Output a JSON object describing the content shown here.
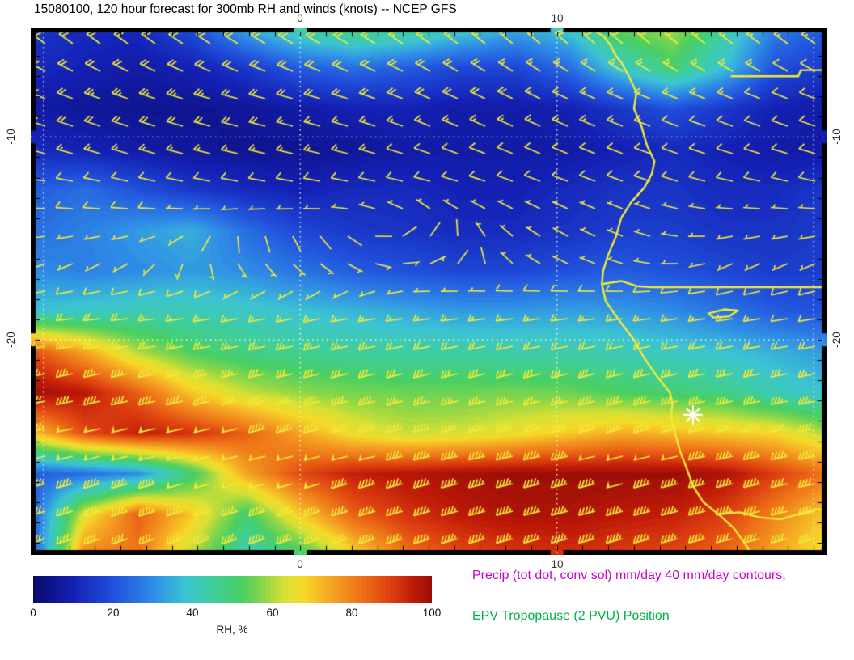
{
  "title": "15080100, 120 hour forecast for 300mb RH and winds (knots) -- NCEP GFS",
  "axes": {
    "lon_range": [
      -10.5,
      20.5
    ],
    "lat_range": [
      -30.6,
      -4.6
    ],
    "lon_ticks": [
      {
        "value": 0,
        "label": "0"
      },
      {
        "value": 10,
        "label": "10"
      }
    ],
    "lat_ticks": [
      {
        "value": -10,
        "label": "-10"
      },
      {
        "value": -20,
        "label": "-20"
      }
    ],
    "lon_gridlines": [
      -10,
      0,
      10,
      20
    ],
    "lat_gridlines": [
      -10,
      -20
    ]
  },
  "colorbar": {
    "label": "RH, %",
    "tick_labels": [
      "0",
      "20",
      "40",
      "60",
      "80",
      "100"
    ],
    "min": 0,
    "max": 100
  },
  "annotations": {
    "precip_line": "Precip (tot dot, conv sol) mm/day 40 mm/day contours,",
    "precip_color": "#cc00cc",
    "epv_line": "EPV Tropopause (2 PVU) Position",
    "epv_color": "#00b244"
  },
  "chart_data": {
    "type": "heatmap",
    "title": "15080100, 120 hour forecast for 300mb RH and winds (knots) -- NCEP GFS",
    "field": "300mb relative humidity (%)",
    "overlay": "wind barbs (knots)",
    "model": "NCEP GFS",
    "init_time": "15080100",
    "forecast_hour": 120,
    "lons": [
      -10.5,
      -8.4,
      -6.3,
      -4.2,
      -2.1,
      0,
      2.1,
      4.2,
      6.3,
      8.4,
      10.5,
      12.5,
      14.5,
      16.5,
      18.5,
      20.5
    ],
    "lats": [
      -4.6,
      -6.6,
      -8.6,
      -10.6,
      -12.6,
      -14.6,
      -16.6,
      -18.6,
      -20.6,
      -22.6,
      -24.6,
      -26.6,
      -28.6,
      -30.6
    ],
    "rh": [
      [
        15,
        12,
        12,
        20,
        35,
        45,
        50,
        48,
        42,
        35,
        40,
        55,
        60,
        45,
        28,
        22
      ],
      [
        12,
        10,
        8,
        10,
        15,
        22,
        25,
        22,
        18,
        18,
        25,
        40,
        50,
        38,
        20,
        15
      ],
      [
        8,
        6,
        5,
        5,
        6,
        8,
        10,
        10,
        8,
        8,
        10,
        15,
        20,
        15,
        10,
        8
      ],
      [
        12,
        10,
        8,
        6,
        5,
        5,
        6,
        8,
        8,
        8,
        8,
        10,
        12,
        10,
        8,
        8
      ],
      [
        22,
        25,
        20,
        15,
        12,
        10,
        12,
        12,
        10,
        10,
        12,
        14,
        14,
        12,
        12,
        15
      ],
      [
        25,
        28,
        32,
        35,
        25,
        18,
        15,
        14,
        12,
        12,
        14,
        16,
        16,
        14,
        14,
        16
      ],
      [
        30,
        28,
        30,
        32,
        30,
        26,
        22,
        20,
        18,
        18,
        20,
        22,
        20,
        18,
        16,
        16
      ],
      [
        38,
        40,
        42,
        42,
        40,
        38,
        36,
        34,
        32,
        32,
        33,
        32,
        30,
        26,
        22,
        20
      ],
      [
        88,
        75,
        60,
        52,
        48,
        46,
        45,
        44,
        44,
        43,
        43,
        42,
        40,
        38,
        35,
        32
      ],
      [
        100,
        96,
        85,
        70,
        62,
        58,
        56,
        55,
        55,
        56,
        55,
        52,
        50,
        48,
        42,
        38
      ],
      [
        70,
        88,
        95,
        92,
        85,
        75,
        66,
        62,
        63,
        66,
        70,
        74,
        72,
        70,
        68,
        60
      ],
      [
        22,
        25,
        30,
        50,
        75,
        88,
        95,
        97,
        99,
        100,
        100,
        100,
        100,
        98,
        90,
        82
      ],
      [
        20,
        65,
        85,
        70,
        50,
        70,
        85,
        92,
        96,
        98,
        98,
        96,
        95,
        90,
        80,
        70
      ],
      [
        18,
        80,
        82,
        60,
        42,
        50,
        68,
        82,
        88,
        91,
        92,
        90,
        88,
        84,
        75,
        65
      ]
    ],
    "wind": {
      "units": "knots",
      "lons": [
        -10.5,
        -6.6,
        -2.7,
        1.2,
        5.1,
        9,
        12.9,
        16.8,
        20.5
      ],
      "lats": [
        -4.6,
        -8,
        -12,
        -16,
        -19,
        -22,
        -25,
        -30.6
      ],
      "u": [
        [
          14,
          16,
          15,
          14,
          12,
          12,
          14,
          12,
          10
        ],
        [
          20,
          22,
          22,
          20,
          18,
          16,
          15,
          12,
          10
        ],
        [
          12,
          12,
          10,
          10,
          8,
          8,
          8,
          8,
          8
        ],
        [
          5,
          4,
          -4,
          -6,
          -5,
          3,
          5,
          4,
          4
        ],
        [
          18,
          18,
          16,
          15,
          15,
          14,
          14,
          13,
          12
        ],
        [
          38,
          36,
          34,
          32,
          30,
          30,
          32,
          30,
          28
        ],
        [
          48,
          50,
          50,
          48,
          45,
          45,
          48,
          46,
          42
        ],
        [
          35,
          38,
          40,
          42,
          44,
          45,
          44,
          40,
          36
        ]
      ],
      "v": [
        [
          -12,
          -14,
          -12,
          -10,
          -10,
          -12,
          -14,
          -10,
          -8
        ],
        [
          -8,
          -8,
          -6,
          -6,
          -8,
          -8,
          -6,
          -5,
          -4
        ],
        [
          -2,
          -3,
          -2,
          -2,
          -2,
          -3,
          -3,
          -2,
          -2
        ],
        [
          2,
          3,
          4,
          3,
          -2,
          -3,
          -2,
          2,
          2
        ],
        [
          2,
          2,
          3,
          3,
          2,
          2,
          2,
          2,
          2
        ],
        [
          8,
          8,
          8,
          8,
          8,
          8,
          8,
          6,
          6
        ],
        [
          10,
          12,
          12,
          12,
          10,
          10,
          12,
          10,
          8
        ],
        [
          12,
          14,
          14,
          14,
          14,
          12,
          12,
          10,
          10
        ]
      ]
    },
    "colormap": [
      {
        "v": 0,
        "c": "#0a0a6e"
      },
      {
        "v": 10,
        "c": "#1420b4"
      },
      {
        "v": 20,
        "c": "#2050dc"
      },
      {
        "v": 30,
        "c": "#2f8ce6"
      },
      {
        "v": 38,
        "c": "#3cc3d2"
      },
      {
        "v": 45,
        "c": "#3fce9e"
      },
      {
        "v": 52,
        "c": "#49cf63"
      },
      {
        "v": 58,
        "c": "#8ed647"
      },
      {
        "v": 63,
        "c": "#d8e034"
      },
      {
        "v": 68,
        "c": "#f5d928"
      },
      {
        "v": 75,
        "c": "#f5a424"
      },
      {
        "v": 82,
        "c": "#ee7518"
      },
      {
        "v": 90,
        "c": "#dc3d10"
      },
      {
        "v": 96,
        "c": "#bc1808"
      },
      {
        "v": 100,
        "c": "#9b0f06"
      }
    ],
    "coastline_color": "#f2e93a",
    "barb_color": "#f2e93a",
    "gridline_color": "#fffde0",
    "marker": {
      "lon": 15.3,
      "lat": -23.7,
      "symbol": "asterisk",
      "color": "#ffffff"
    },
    "coastline": [
      [
        11.2,
        -4.6
      ],
      [
        11.8,
        -5.0
      ],
      [
        12.1,
        -5.5
      ],
      [
        12.3,
        -6.0
      ],
      [
        12.5,
        -6.3
      ],
      [
        12.8,
        -7.0
      ],
      [
        13.1,
        -7.8
      ],
      [
        13.0,
        -8.6
      ],
      [
        13.3,
        -9.5
      ],
      [
        13.5,
        -10.4
      ],
      [
        13.8,
        -11.2
      ],
      [
        13.7,
        -11.8
      ],
      [
        13.4,
        -12.5
      ],
      [
        12.9,
        -13.2
      ],
      [
        12.5,
        -14.0
      ],
      [
        12.3,
        -14.9
      ],
      [
        12.0,
        -15.8
      ],
      [
        11.8,
        -16.6
      ],
      [
        11.75,
        -17.25
      ],
      [
        11.9,
        -18.1
      ],
      [
        12.4,
        -19.0
      ],
      [
        13.0,
        -20.0
      ],
      [
        13.4,
        -20.9
      ],
      [
        13.9,
        -21.8
      ],
      [
        14.4,
        -22.6
      ],
      [
        14.5,
        -23.1
      ],
      [
        14.45,
        -23.8
      ],
      [
        14.6,
        -24.6
      ],
      [
        14.8,
        -25.5
      ],
      [
        15.1,
        -26.5
      ],
      [
        15.3,
        -27.2
      ],
      [
        15.7,
        -28.0
      ],
      [
        16.3,
        -28.6
      ],
      [
        16.9,
        -29.3
      ],
      [
        17.3,
        -30.0
      ],
      [
        17.6,
        -30.6
      ]
    ],
    "borders": [
      [
        [
          11.75,
          -17.25
        ],
        [
          12.5,
          -17.1
        ],
        [
          13.1,
          -17.35
        ],
        [
          13.7,
          -17.4
        ],
        [
          20.5,
          -17.4
        ]
      ],
      [
        [
          16.3,
          -28.6
        ],
        [
          17.1,
          -28.5
        ],
        [
          17.9,
          -28.75
        ],
        [
          18.7,
          -28.85
        ],
        [
          19.4,
          -28.6
        ],
        [
          20.1,
          -28.35
        ],
        [
          20.5,
          -28.35
        ]
      ],
      [
        [
          20.35,
          -22.0
        ],
        [
          20.35,
          -28.35
        ]
      ],
      [
        [
          20.35,
          -22.0
        ],
        [
          20.5,
          -22.0
        ]
      ],
      [
        [
          16.8,
          -7.0
        ],
        [
          19.4,
          -7.0
        ],
        [
          19.5,
          -6.7
        ],
        [
          20.5,
          -6.7
        ]
      ]
    ],
    "lakes": [
      [
        [
          15.9,
          -18.7
        ],
        [
          16.5,
          -18.5
        ],
        [
          17.05,
          -18.55
        ],
        [
          16.7,
          -18.85
        ],
        [
          16.1,
          -18.9
        ],
        [
          15.9,
          -18.7
        ]
      ]
    ]
  }
}
